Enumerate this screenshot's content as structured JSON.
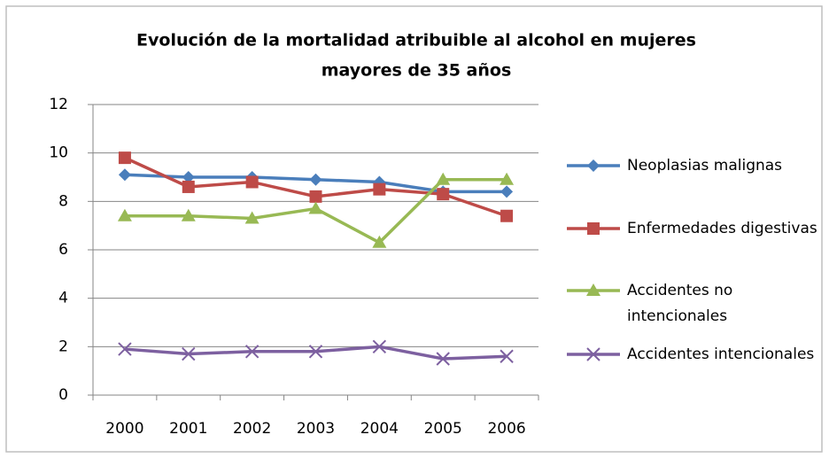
{
  "chart_data": {
    "type": "line",
    "title": [
      "Evolución de la mortalidad atribuible al alcohol en mujeres",
      "mayores de 35  años"
    ],
    "categories": [
      "2000",
      "2001",
      "2002",
      "2003",
      "2004",
      "2005",
      "2006"
    ],
    "series": [
      {
        "name": "Neoplasias malignas",
        "color": "#4a7ebb",
        "marker": "diamond",
        "values": [
          9.1,
          9.0,
          9.0,
          8.9,
          8.8,
          8.4,
          8.4
        ]
      },
      {
        "name": "Enfermedades digestivas",
        "color": "#be4b48",
        "marker": "square",
        "values": [
          9.8,
          8.6,
          8.8,
          8.2,
          8.5,
          8.3,
          7.4
        ]
      },
      {
        "name": "Accidentes no intencionales",
        "color": "#98b954",
        "marker": "triangle",
        "values": [
          7.4,
          7.4,
          7.3,
          7.7,
          6.3,
          8.9,
          8.9
        ]
      },
      {
        "name": "Accidentes intencionales",
        "color": "#7d60a0",
        "marker": "x",
        "values": [
          1.9,
          1.7,
          1.8,
          1.8,
          2.0,
          1.5,
          1.6
        ]
      }
    ],
    "ylim": [
      0,
      12
    ],
    "yticks": [
      0,
      2,
      4,
      6,
      8,
      10,
      12
    ],
    "grid": true,
    "legend": "right"
  }
}
